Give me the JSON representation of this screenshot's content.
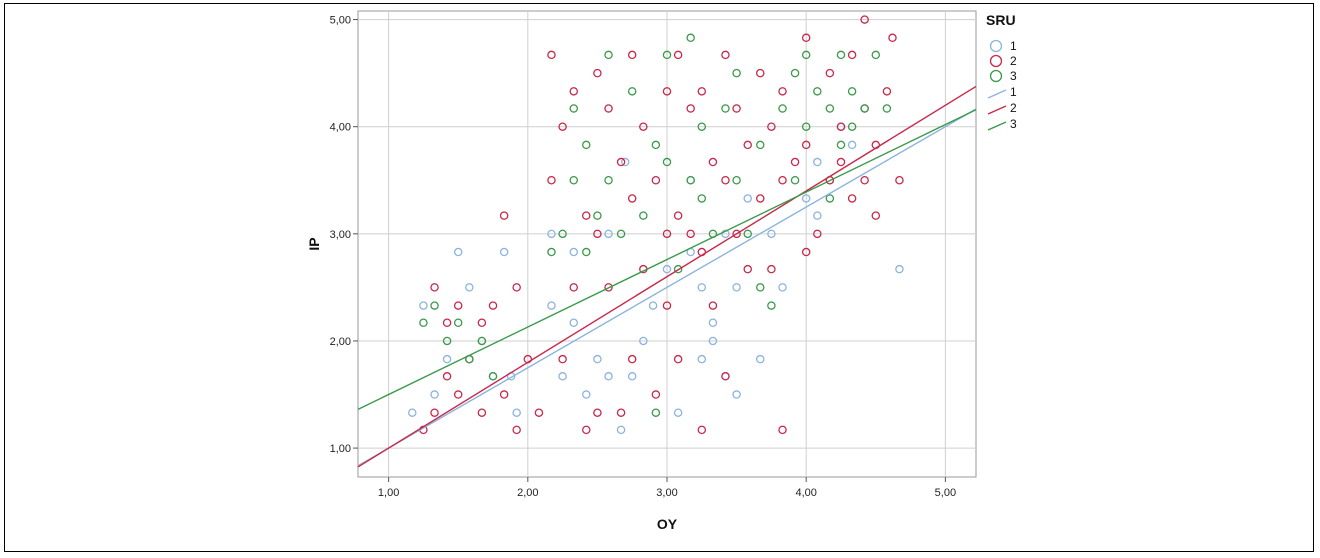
{
  "chart_data": {
    "type": "scatter",
    "xlabel": "OY",
    "ylabel": "IP",
    "xlim": [
      0.78,
      5.22
    ],
    "ylim": [
      0.73,
      5.08
    ],
    "x_ticks": [
      "1,00",
      "2,00",
      "3,00",
      "4,00",
      "5,00"
    ],
    "y_ticks": [
      "1,00",
      "2,00",
      "3,00",
      "4,00",
      "5,00"
    ],
    "grid": true,
    "legend_title": "SRU",
    "legend_position": "right",
    "series": [
      {
        "name": "1",
        "color": "#8cb4de",
        "points": [
          [
            1.17,
            1.33
          ],
          [
            1.25,
            2.33
          ],
          [
            1.33,
            1.5
          ],
          [
            1.42,
            1.83
          ],
          [
            1.5,
            2.83
          ],
          [
            1.58,
            2.5
          ],
          [
            1.67,
            2.0
          ],
          [
            1.75,
            1.67
          ],
          [
            1.83,
            2.83
          ],
          [
            1.88,
            1.67
          ],
          [
            1.92,
            1.33
          ],
          [
            2.17,
            2.33
          ],
          [
            2.25,
            1.67
          ],
          [
            2.33,
            2.17
          ],
          [
            2.42,
            1.5
          ],
          [
            2.5,
            1.83
          ],
          [
            2.58,
            1.67
          ],
          [
            2.67,
            1.17
          ],
          [
            2.7,
            3.67
          ],
          [
            2.75,
            1.67
          ],
          [
            2.83,
            2.0
          ],
          [
            2.9,
            2.33
          ],
          [
            3.0,
            2.67
          ],
          [
            3.08,
            1.33
          ],
          [
            3.17,
            2.83
          ],
          [
            3.25,
            1.83
          ],
          [
            3.33,
            2.17
          ],
          [
            3.33,
            2.0
          ],
          [
            3.42,
            1.67
          ],
          [
            3.5,
            2.5
          ],
          [
            3.58,
            3.33
          ],
          [
            3.67,
            1.83
          ],
          [
            3.75,
            3.0
          ],
          [
            3.83,
            2.5
          ],
          [
            4.0,
            3.33
          ],
          [
            4.08,
            3.67
          ],
          [
            4.17,
            3.5
          ],
          [
            4.25,
            4.0
          ],
          [
            4.33,
            3.83
          ],
          [
            4.67,
            2.67
          ],
          [
            3.25,
            2.5
          ],
          [
            3.42,
            3.0
          ],
          [
            3.17,
            3.5
          ],
          [
            2.17,
            3.0
          ],
          [
            2.58,
            3.0
          ],
          [
            2.33,
            2.83
          ],
          [
            3.5,
            1.5
          ],
          [
            4.08,
            3.17
          ]
        ],
        "line": [
          1.0,
          0.75
        ]
      },
      {
        "name": "2",
        "color": "#c8284a",
        "points": [
          [
            1.25,
            1.17
          ],
          [
            1.33,
            1.33
          ],
          [
            1.33,
            2.5
          ],
          [
            1.42,
            2.17
          ],
          [
            1.42,
            1.67
          ],
          [
            1.5,
            1.5
          ],
          [
            1.5,
            2.33
          ],
          [
            1.58,
            1.83
          ],
          [
            1.67,
            2.17
          ],
          [
            1.67,
            1.33
          ],
          [
            1.75,
            2.33
          ],
          [
            1.83,
            3.17
          ],
          [
            1.83,
            1.5
          ],
          [
            1.92,
            2.5
          ],
          [
            1.92,
            1.17
          ],
          [
            2.0,
            1.83
          ],
          [
            2.08,
            1.33
          ],
          [
            2.17,
            3.5
          ],
          [
            2.17,
            4.67
          ],
          [
            2.25,
            4.0
          ],
          [
            2.25,
            1.83
          ],
          [
            2.33,
            4.33
          ],
          [
            2.33,
            2.5
          ],
          [
            2.42,
            3.17
          ],
          [
            2.42,
            1.17
          ],
          [
            2.5,
            4.5
          ],
          [
            2.5,
            3.0
          ],
          [
            2.5,
            1.33
          ],
          [
            2.58,
            4.17
          ],
          [
            2.58,
            2.5
          ],
          [
            2.67,
            3.67
          ],
          [
            2.67,
            1.33
          ],
          [
            2.75,
            4.67
          ],
          [
            2.75,
            3.33
          ],
          [
            2.75,
            1.83
          ],
          [
            2.83,
            4.0
          ],
          [
            2.83,
            2.67
          ],
          [
            2.92,
            3.5
          ],
          [
            2.92,
            1.5
          ],
          [
            3.0,
            4.33
          ],
          [
            3.0,
            3.0
          ],
          [
            3.0,
            2.33
          ],
          [
            3.08,
            4.67
          ],
          [
            3.08,
            3.17
          ],
          [
            3.08,
            1.83
          ],
          [
            3.17,
            4.17
          ],
          [
            3.17,
            3.0
          ],
          [
            3.25,
            4.33
          ],
          [
            3.25,
            2.83
          ],
          [
            3.25,
            1.17
          ],
          [
            3.33,
            3.67
          ],
          [
            3.33,
            2.33
          ],
          [
            3.42,
            4.67
          ],
          [
            3.42,
            3.5
          ],
          [
            3.42,
            1.67
          ],
          [
            3.5,
            4.17
          ],
          [
            3.5,
            3.0
          ],
          [
            3.58,
            3.83
          ],
          [
            3.58,
            2.67
          ],
          [
            3.67,
            4.5
          ],
          [
            3.67,
            3.33
          ],
          [
            3.75,
            4.0
          ],
          [
            3.75,
            2.67
          ],
          [
            3.83,
            4.33
          ],
          [
            3.83,
            3.5
          ],
          [
            3.83,
            1.17
          ],
          [
            3.92,
            3.67
          ],
          [
            4.0,
            4.83
          ],
          [
            4.0,
            3.83
          ],
          [
            4.0,
            2.83
          ],
          [
            4.08,
            3.0
          ],
          [
            4.17,
            4.5
          ],
          [
            4.17,
            3.5
          ],
          [
            4.25,
            4.0
          ],
          [
            4.25,
            3.67
          ],
          [
            4.33,
            4.67
          ],
          [
            4.33,
            3.33
          ],
          [
            4.42,
            5.0
          ],
          [
            4.42,
            4.17
          ],
          [
            4.5,
            3.83
          ],
          [
            4.5,
            3.17
          ],
          [
            4.58,
            4.33
          ],
          [
            4.62,
            4.83
          ],
          [
            4.67,
            3.5
          ],
          [
            4.42,
            3.5
          ]
        ],
        "line": [
          1.0,
          0.8
        ]
      },
      {
        "name": "3",
        "color": "#3a9a4a",
        "points": [
          [
            1.25,
            2.17
          ],
          [
            1.33,
            2.33
          ],
          [
            1.42,
            2.0
          ],
          [
            1.5,
            2.17
          ],
          [
            1.58,
            1.83
          ],
          [
            1.67,
            2.0
          ],
          [
            1.75,
            1.67
          ],
          [
            2.17,
            2.83
          ],
          [
            2.25,
            3.0
          ],
          [
            2.33,
            3.5
          ],
          [
            2.33,
            4.17
          ],
          [
            2.42,
            2.83
          ],
          [
            2.42,
            3.83
          ],
          [
            2.5,
            3.17
          ],
          [
            2.58,
            3.5
          ],
          [
            2.58,
            4.67
          ],
          [
            2.67,
            3.0
          ],
          [
            2.75,
            4.33
          ],
          [
            2.83,
            3.17
          ],
          [
            2.92,
            3.83
          ],
          [
            2.92,
            1.33
          ],
          [
            3.0,
            4.67
          ],
          [
            3.0,
            3.67
          ],
          [
            3.08,
            2.67
          ],
          [
            3.17,
            4.83
          ],
          [
            3.17,
            3.5
          ],
          [
            3.25,
            4.0
          ],
          [
            3.25,
            3.33
          ],
          [
            3.33,
            3.0
          ],
          [
            3.42,
            4.17
          ],
          [
            3.5,
            3.5
          ],
          [
            3.5,
            4.5
          ],
          [
            3.58,
            3.0
          ],
          [
            3.67,
            3.83
          ],
          [
            3.67,
            2.5
          ],
          [
            3.75,
            2.33
          ],
          [
            3.83,
            4.17
          ],
          [
            3.92,
            4.5
          ],
          [
            3.92,
            3.5
          ],
          [
            4.0,
            4.67
          ],
          [
            4.0,
            4.0
          ],
          [
            4.08,
            4.33
          ],
          [
            4.17,
            4.17
          ],
          [
            4.17,
            3.33
          ],
          [
            4.25,
            4.67
          ],
          [
            4.25,
            3.83
          ],
          [
            4.33,
            4.33
          ],
          [
            4.33,
            4.0
          ],
          [
            4.42,
            4.17
          ],
          [
            4.5,
            4.67
          ],
          [
            4.58,
            4.17
          ]
        ],
        "line": [
          1.5,
          0.63
        ]
      }
    ]
  }
}
